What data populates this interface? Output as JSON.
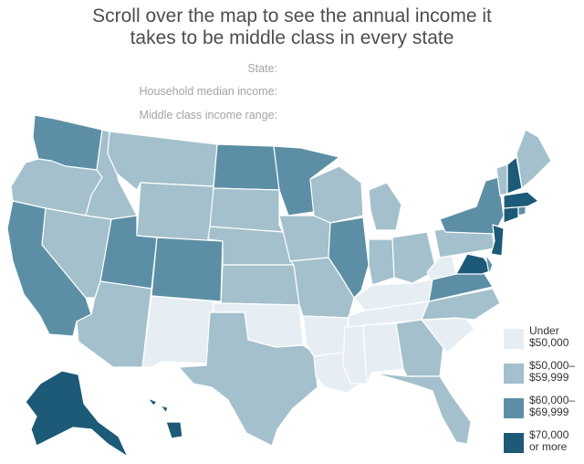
{
  "title": [
    "Scroll over the map to see the annual income it",
    "takes to be middle class in every state"
  ],
  "info": {
    "state_label": "State:",
    "median_label": "Household median income:",
    "range_label": "Middle class income range:"
  },
  "legend": [
    {
      "line1": "Under",
      "line2": "$50,000",
      "color": "#e6eef3"
    },
    {
      "line1": "$50,000–",
      "line2": "$59,999",
      "color": "#a3c0cc"
    },
    {
      "line1": "$60,000–",
      "line2": "$69,999",
      "color": "#5c8fa5"
    },
    {
      "line1": "$70,000",
      "line2": "or more",
      "color": "#1c5a78"
    }
  ],
  "state_income_bracket": {
    "WA": 2,
    "OR": 1,
    "CA": 2,
    "NV": 1,
    "ID": 1,
    "MT": 1,
    "WY": 1,
    "UT": 2,
    "CO": 2,
    "AZ": 1,
    "NM": 0,
    "ND": 2,
    "SD": 1,
    "NE": 1,
    "KS": 1,
    "OK": 0,
    "TX": 1,
    "MN": 2,
    "IA": 1,
    "MO": 1,
    "AR": 0,
    "LA": 0,
    "WI": 1,
    "IL": 2,
    "MS": 0,
    "MI": 1,
    "IN": 1,
    "OH": 1,
    "KY": 0,
    "TN": 0,
    "AL": 0,
    "WV": 0,
    "GA": 1,
    "FL": 1,
    "SC": 0,
    "NC": 1,
    "VA": 2,
    "MD": 3,
    "DE": 2,
    "PA": 1,
    "NY": 2,
    "NJ": 3,
    "CT": 3,
    "RI": 2,
    "MA": 3,
    "VT": 1,
    "NH": 3,
    "ME": 1,
    "AK": 3,
    "HI": 3
  }
}
